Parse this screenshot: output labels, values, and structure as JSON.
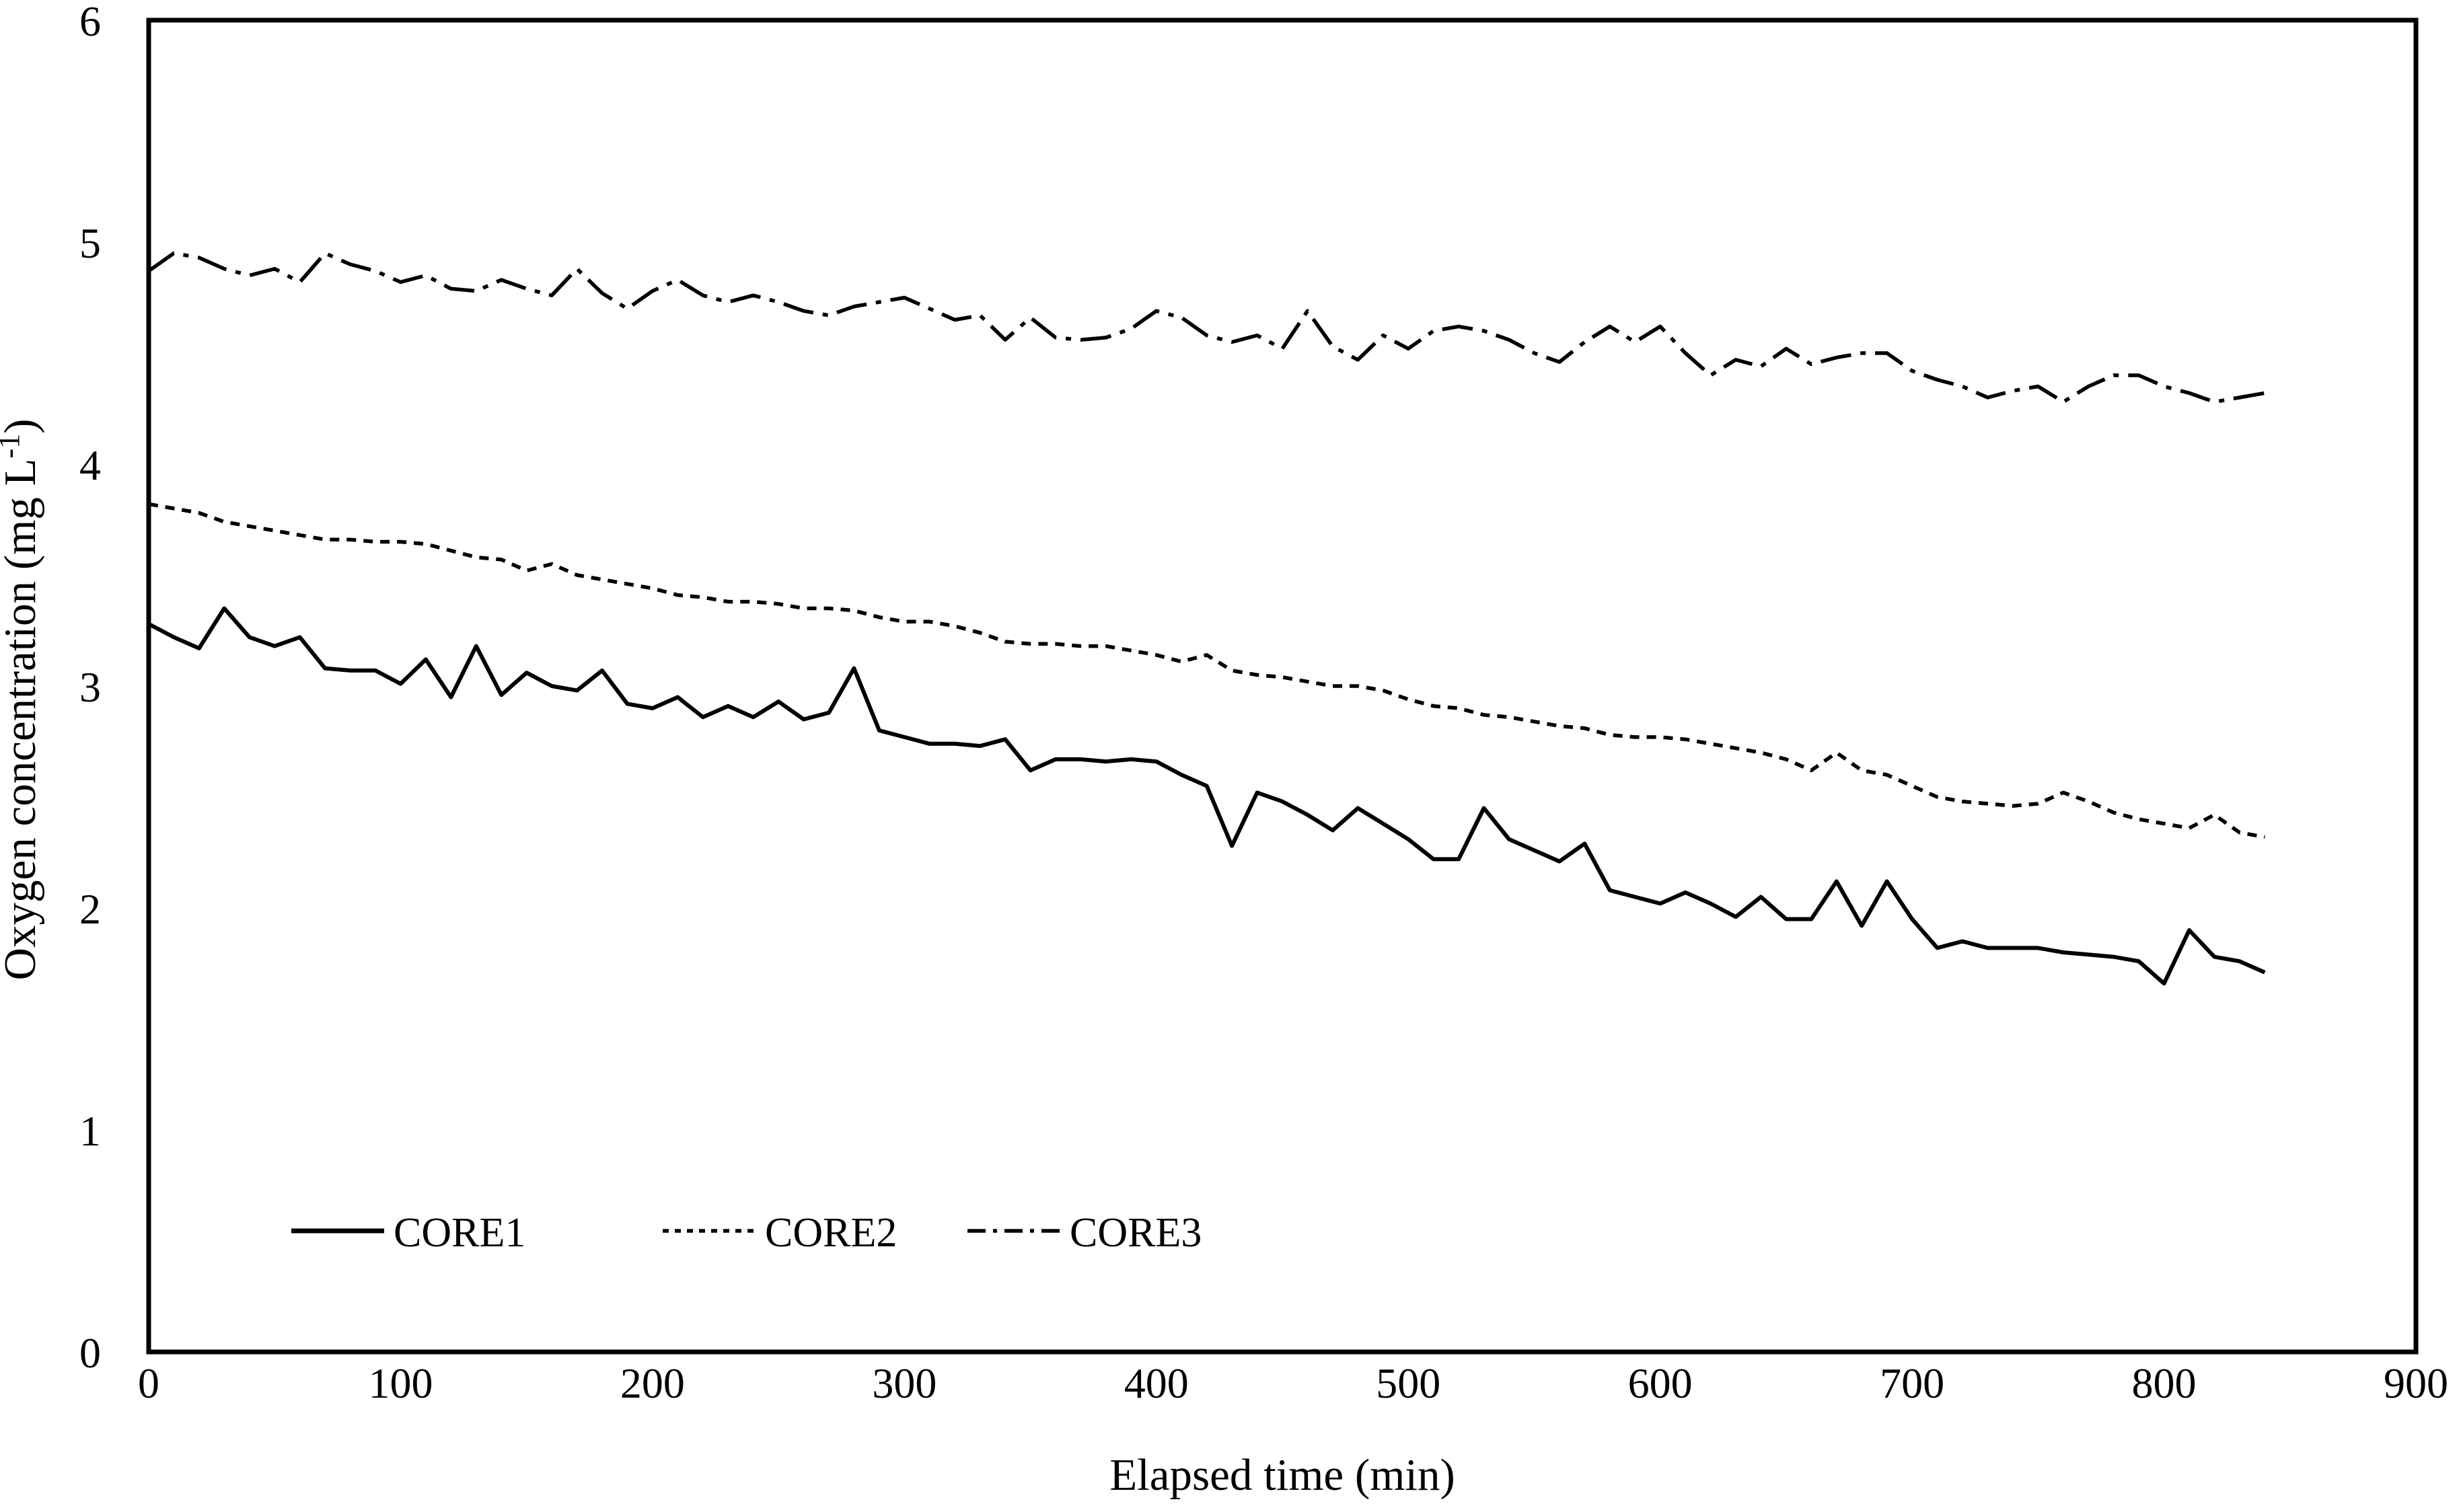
{
  "figure": {
    "background_color": "#ffffff",
    "ink_color": "#000000"
  },
  "chart_data": {
    "type": "line",
    "title": "",
    "xlabel": "Elapsed time (min)",
    "ylabel": "Oxygen concentration (mg L⁻¹)",
    "ylabel_parts": [
      "Oxygen concentration (mg L",
      "-1",
      ")"
    ],
    "xlim": [
      0,
      900
    ],
    "ylim": [
      0,
      6
    ],
    "xticks": [
      0,
      100,
      200,
      300,
      400,
      500,
      600,
      700,
      800,
      900
    ],
    "yticks": [
      0,
      1,
      2,
      3,
      4,
      5,
      6
    ],
    "grid": false,
    "legend_position": "inside-bottom-left",
    "x": [
      0,
      10,
      20,
      30,
      40,
      50,
      60,
      70,
      80,
      90,
      100,
      110,
      120,
      130,
      140,
      150,
      160,
      170,
      180,
      190,
      200,
      210,
      220,
      230,
      240,
      250,
      260,
      270,
      280,
      290,
      300,
      310,
      320,
      330,
      340,
      350,
      360,
      370,
      380,
      390,
      400,
      410,
      420,
      430,
      440,
      450,
      460,
      470,
      480,
      490,
      500,
      510,
      520,
      530,
      540,
      550,
      560,
      570,
      580,
      590,
      600,
      610,
      620,
      630,
      640,
      650,
      660,
      670,
      680,
      690,
      700,
      710,
      720,
      730,
      740,
      750,
      760,
      770,
      780,
      790,
      800,
      810,
      820,
      830,
      840
    ],
    "series": [
      {
        "name": "CORE1",
        "line_style": "solid",
        "color": "#000000",
        "values": [
          3.28,
          3.22,
          3.17,
          3.35,
          3.22,
          3.18,
          3.22,
          3.08,
          3.07,
          3.07,
          3.01,
          3.12,
          2.95,
          3.18,
          2.96,
          3.06,
          3.0,
          2.98,
          3.07,
          2.92,
          2.9,
          2.95,
          2.86,
          2.91,
          2.86,
          2.93,
          2.85,
          2.88,
          3.08,
          2.8,
          2.77,
          2.74,
          2.74,
          2.73,
          2.76,
          2.62,
          2.67,
          2.67,
          2.66,
          2.67,
          2.66,
          2.6,
          2.55,
          2.28,
          2.52,
          2.48,
          2.42,
          2.35,
          2.45,
          2.38,
          2.31,
          2.22,
          2.22,
          2.45,
          2.31,
          2.26,
          2.21,
          2.29,
          2.08,
          2.05,
          2.02,
          2.07,
          2.02,
          1.96,
          2.05,
          1.95,
          1.95,
          2.12,
          1.92,
          2.12,
          1.95,
          1.82,
          1.85,
          1.82,
          1.82,
          1.82,
          1.8,
          1.79,
          1.78,
          1.76,
          1.66,
          1.9,
          1.78,
          1.76,
          1.71
        ]
      },
      {
        "name": "CORE2",
        "line_style": "dotted",
        "color": "#000000",
        "values": [
          3.82,
          3.8,
          3.78,
          3.74,
          3.72,
          3.7,
          3.68,
          3.66,
          3.66,
          3.65,
          3.65,
          3.64,
          3.61,
          3.58,
          3.57,
          3.52,
          3.55,
          3.5,
          3.48,
          3.46,
          3.44,
          3.41,
          3.4,
          3.38,
          3.38,
          3.37,
          3.35,
          3.35,
          3.34,
          3.31,
          3.29,
          3.29,
          3.27,
          3.24,
          3.2,
          3.19,
          3.19,
          3.18,
          3.18,
          3.16,
          3.14,
          3.11,
          3.14,
          3.07,
          3.05,
          3.04,
          3.02,
          3.0,
          3.0,
          2.98,
          2.94,
          2.91,
          2.9,
          2.87,
          2.86,
          2.84,
          2.82,
          2.81,
          2.78,
          2.77,
          2.77,
          2.76,
          2.74,
          2.72,
          2.7,
          2.67,
          2.62,
          2.7,
          2.62,
          2.6,
          2.55,
          2.5,
          2.48,
          2.47,
          2.46,
          2.47,
          2.52,
          2.48,
          2.43,
          2.4,
          2.38,
          2.36,
          2.42,
          2.34,
          2.32
        ]
      },
      {
        "name": "CORE3",
        "line_style": "dash-dot",
        "color": "#000000",
        "values": [
          4.87,
          4.95,
          4.93,
          4.88,
          4.85,
          4.88,
          4.82,
          4.95,
          4.9,
          4.87,
          4.82,
          4.85,
          4.79,
          4.78,
          4.83,
          4.79,
          4.76,
          4.88,
          4.77,
          4.7,
          4.78,
          4.83,
          4.76,
          4.73,
          4.76,
          4.73,
          4.69,
          4.67,
          4.71,
          4.73,
          4.75,
          4.7,
          4.65,
          4.67,
          4.56,
          4.66,
          4.57,
          4.56,
          4.57,
          4.61,
          4.69,
          4.66,
          4.58,
          4.55,
          4.58,
          4.52,
          4.69,
          4.53,
          4.47,
          4.58,
          4.52,
          4.6,
          4.62,
          4.6,
          4.56,
          4.5,
          4.46,
          4.55,
          4.62,
          4.55,
          4.62,
          4.5,
          4.4,
          4.47,
          4.44,
          4.52,
          4.45,
          4.48,
          4.5,
          4.5,
          4.42,
          4.38,
          4.35,
          4.3,
          4.33,
          4.35,
          4.28,
          4.35,
          4.4,
          4.4,
          4.35,
          4.32,
          4.28,
          4.3,
          4.32
        ]
      }
    ]
  }
}
